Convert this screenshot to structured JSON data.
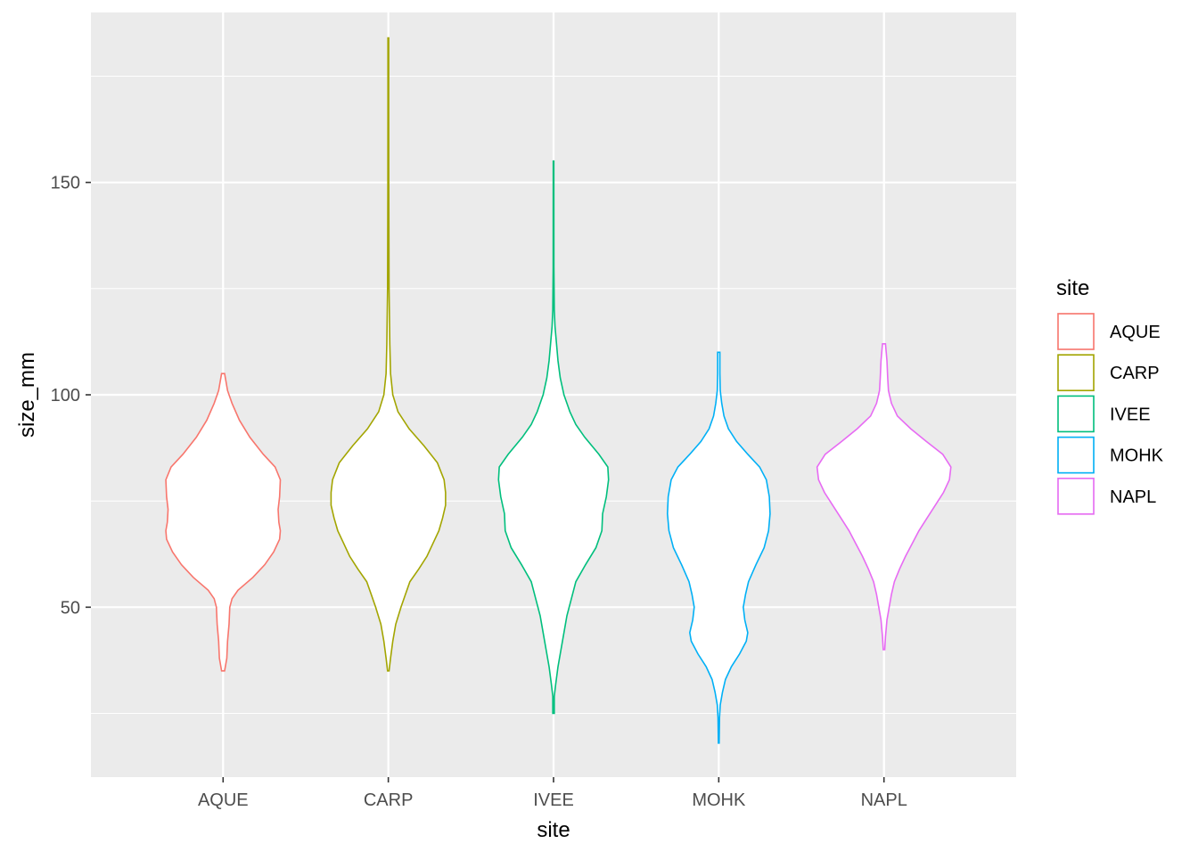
{
  "chart_data": {
    "type": "violin",
    "title": "",
    "xlabel": "site",
    "ylabel": "size_mm",
    "categories": [
      "AQUE",
      "CARP",
      "IVEE",
      "MOHK",
      "NAPL"
    ],
    "ylim": [
      10,
      190
    ],
    "yticks": [
      50,
      100,
      150
    ],
    "grid": true,
    "legend": {
      "title": "site",
      "placement": "right"
    },
    "series": [
      {
        "name": "AQUE",
        "color": "#F8766D",
        "min": 35,
        "max": 105,
        "profile": [
          [
            35,
            0.02
          ],
          [
            38,
            0.05
          ],
          [
            42,
            0.06
          ],
          [
            46,
            0.08
          ],
          [
            50,
            0.09
          ],
          [
            52,
            0.12
          ],
          [
            54,
            0.2
          ],
          [
            57,
            0.4
          ],
          [
            60,
            0.56
          ],
          [
            63,
            0.68
          ],
          [
            66,
            0.76
          ],
          [
            68,
            0.77
          ],
          [
            70,
            0.75
          ],
          [
            73,
            0.74
          ],
          [
            76,
            0.76
          ],
          [
            80,
            0.77
          ],
          [
            83,
            0.7
          ],
          [
            86,
            0.54
          ],
          [
            90,
            0.36
          ],
          [
            94,
            0.22
          ],
          [
            98,
            0.12
          ],
          [
            101,
            0.06
          ],
          [
            104,
            0.03
          ],
          [
            105,
            0.02
          ]
        ]
      },
      {
        "name": "CARP",
        "color": "#A3A500",
        "min": 35,
        "max": 184,
        "profile": [
          [
            35,
            0.01
          ],
          [
            38,
            0.03
          ],
          [
            42,
            0.06
          ],
          [
            46,
            0.1
          ],
          [
            50,
            0.17
          ],
          [
            53,
            0.23
          ],
          [
            56,
            0.29
          ],
          [
            59,
            0.41
          ],
          [
            62,
            0.52
          ],
          [
            65,
            0.6
          ],
          [
            68,
            0.68
          ],
          [
            71,
            0.73
          ],
          [
            74,
            0.77
          ],
          [
            77,
            0.77
          ],
          [
            80,
            0.75
          ],
          [
            84,
            0.66
          ],
          [
            88,
            0.48
          ],
          [
            92,
            0.28
          ],
          [
            96,
            0.13
          ],
          [
            100,
            0.06
          ],
          [
            105,
            0.03
          ],
          [
            112,
            0.02
          ],
          [
            125,
            0.01
          ],
          [
            150,
            0.006
          ],
          [
            170,
            0.005
          ],
          [
            184,
            0.005
          ]
        ]
      },
      {
        "name": "IVEE",
        "color": "#00BF7D",
        "min": 25,
        "max": 155,
        "profile": [
          [
            25,
            0.01
          ],
          [
            29,
            0.01
          ],
          [
            32,
            0.03
          ],
          [
            36,
            0.06
          ],
          [
            40,
            0.1
          ],
          [
            44,
            0.14
          ],
          [
            48,
            0.18
          ],
          [
            52,
            0.24
          ],
          [
            56,
            0.3
          ],
          [
            60,
            0.43
          ],
          [
            64,
            0.57
          ],
          [
            68,
            0.65
          ],
          [
            72,
            0.66
          ],
          [
            76,
            0.71
          ],
          [
            80,
            0.74
          ],
          [
            83,
            0.73
          ],
          [
            86,
            0.61
          ],
          [
            90,
            0.42
          ],
          [
            93,
            0.3
          ],
          [
            96,
            0.22
          ],
          [
            100,
            0.14
          ],
          [
            104,
            0.09
          ],
          [
            108,
            0.06
          ],
          [
            112,
            0.04
          ],
          [
            116,
            0.02
          ],
          [
            120,
            0.01
          ],
          [
            130,
            0.005
          ],
          [
            155,
            0.004
          ]
        ]
      },
      {
        "name": "MOHK",
        "color": "#00B0F6",
        "min": 18,
        "max": 110,
        "profile": [
          [
            18,
            0.005
          ],
          [
            24,
            0.01
          ],
          [
            27,
            0.02
          ],
          [
            30,
            0.05
          ],
          [
            33,
            0.09
          ],
          [
            36,
            0.17
          ],
          [
            39,
            0.28
          ],
          [
            42,
            0.37
          ],
          [
            44,
            0.39
          ],
          [
            47,
            0.35
          ],
          [
            50,
            0.33
          ],
          [
            53,
            0.36
          ],
          [
            56,
            0.4
          ],
          [
            60,
            0.5
          ],
          [
            64,
            0.61
          ],
          [
            68,
            0.67
          ],
          [
            72,
            0.69
          ],
          [
            76,
            0.68
          ],
          [
            80,
            0.64
          ],
          [
            83,
            0.55
          ],
          [
            86,
            0.39
          ],
          [
            89,
            0.24
          ],
          [
            92,
            0.13
          ],
          [
            95,
            0.07
          ],
          [
            98,
            0.04
          ],
          [
            101,
            0.02
          ],
          [
            105,
            0.015
          ],
          [
            110,
            0.015
          ]
        ]
      },
      {
        "name": "NAPL",
        "color": "#E76BF3",
        "min": 40,
        "max": 112,
        "profile": [
          [
            40,
            0.01
          ],
          [
            43,
            0.02
          ],
          [
            47,
            0.04
          ],
          [
            50,
            0.07
          ],
          [
            53,
            0.1
          ],
          [
            56,
            0.14
          ],
          [
            59,
            0.21
          ],
          [
            62,
            0.29
          ],
          [
            65,
            0.38
          ],
          [
            68,
            0.47
          ],
          [
            71,
            0.58
          ],
          [
            74,
            0.69
          ],
          [
            77,
            0.8
          ],
          [
            80,
            0.88
          ],
          [
            83,
            0.9
          ],
          [
            86,
            0.79
          ],
          [
            89,
            0.57
          ],
          [
            92,
            0.36
          ],
          [
            95,
            0.18
          ],
          [
            98,
            0.1
          ],
          [
            101,
            0.06
          ],
          [
            104,
            0.05
          ],
          [
            108,
            0.04
          ],
          [
            110,
            0.03
          ],
          [
            112,
            0.02
          ]
        ]
      }
    ]
  }
}
